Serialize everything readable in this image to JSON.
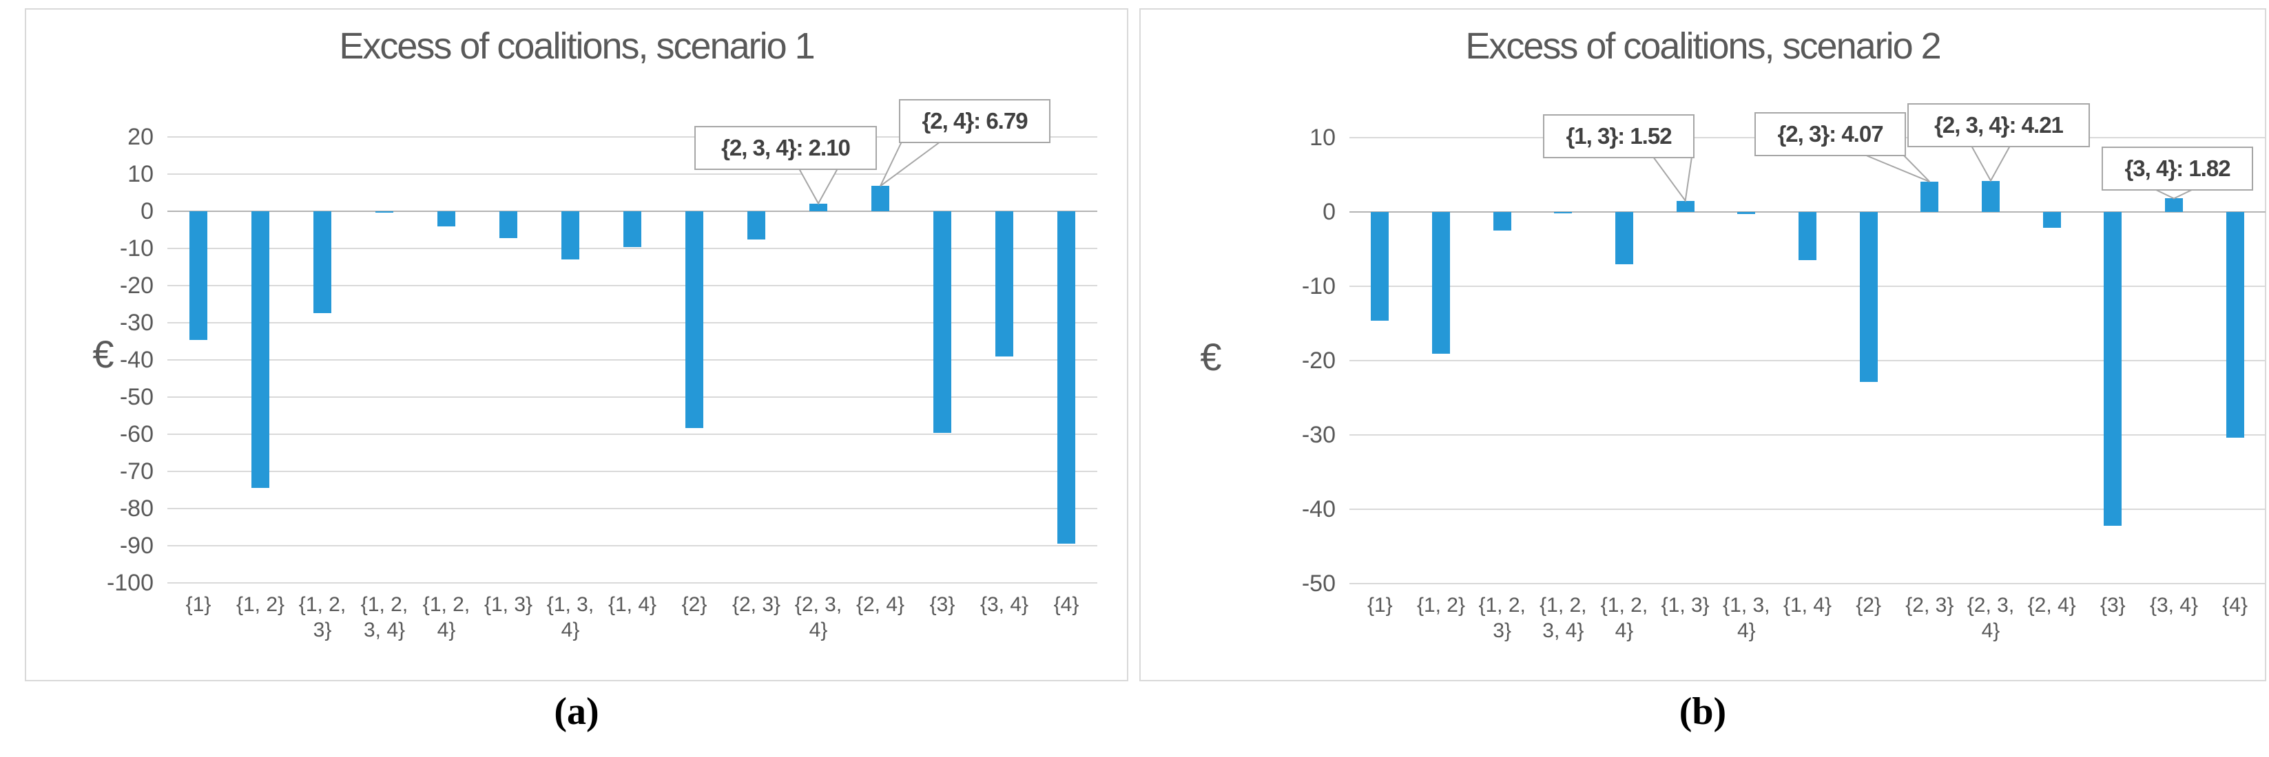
{
  "figure": {
    "caption_a": "(a)",
    "caption_b": "(b)"
  },
  "colors": {
    "bar": "#2598d7",
    "title_text": "#595959",
    "axis_text": "#595959",
    "gridline": "#d9d9d9",
    "zero_axis": "#b3b3b3",
    "callout_border": "#a6a6a6",
    "callout_text": "#404040",
    "panel_border": "#d9d9d9"
  },
  "chart_data": [
    {
      "type": "bar",
      "title": "Excess of coalitions, scenario 1",
      "ylabel": "€",
      "xlabel": "",
      "ylim": [
        -100,
        20
      ],
      "ytick_step": 10,
      "grid": true,
      "legend_position": "none",
      "bar_color": "#2598d7",
      "categories": [
        "{1}",
        "{1, 2}",
        "{1, 2,\n3}",
        "{1, 2,\n3, 4}",
        "{1, 2,\n4}",
        "{1, 3}",
        "{1, 3,\n4}",
        "{1, 4}",
        "{2}",
        "{2, 3}",
        "{2, 3,\n4}",
        "{2, 4}",
        "{3}",
        "{3, 4}",
        "{4}"
      ],
      "values": [
        -34.7,
        -74.5,
        -27.4,
        -0.3,
        -4.0,
        -7.2,
        -12.9,
        -9.7,
        -58.3,
        -7.5,
        2.1,
        6.79,
        -59.6,
        -39.1,
        -89.4
      ],
      "annotations": [
        {
          "label": "{2, 3, 4}: 2.10",
          "category_index": 10,
          "value": 2.1
        },
        {
          "label": "{2, 4}: 6.79",
          "category_index": 11,
          "value": 6.79
        }
      ]
    },
    {
      "type": "bar",
      "title": "Excess of coalitions, scenario 2",
      "ylabel": "€",
      "xlabel": "",
      "ylim": [
        -50,
        10
      ],
      "ytick_step": 10,
      "grid": true,
      "legend_position": "none",
      "bar_color": "#2598d7",
      "categories": [
        "{1}",
        "{1, 2}",
        "{1, 2,\n3}",
        "{1, 2,\n3, 4}",
        "{1, 2,\n4}",
        "{1, 3}",
        "{1, 3,\n4}",
        "{1, 4}",
        "{2}",
        "{2, 3}",
        "{2, 3,\n4}",
        "{2, 4}",
        "{3}",
        "{3, 4}",
        "{4}"
      ],
      "values": [
        -14.6,
        -19.1,
        -2.5,
        -0.2,
        -7.0,
        1.52,
        -0.3,
        -6.5,
        -22.9,
        4.07,
        4.21,
        -2.1,
        -42.2,
        1.82,
        -30.4
      ],
      "annotations": [
        {
          "label": "{1, 3}: 1.52",
          "category_index": 5,
          "value": 1.52
        },
        {
          "label": "{2, 3}: 4.07",
          "category_index": 9,
          "value": 4.07
        },
        {
          "label": "{2, 3, 4}: 4.21",
          "category_index": 10,
          "value": 4.21
        },
        {
          "label": "{3, 4}: 1.82",
          "category_index": 13,
          "value": 1.82
        }
      ]
    }
  ]
}
